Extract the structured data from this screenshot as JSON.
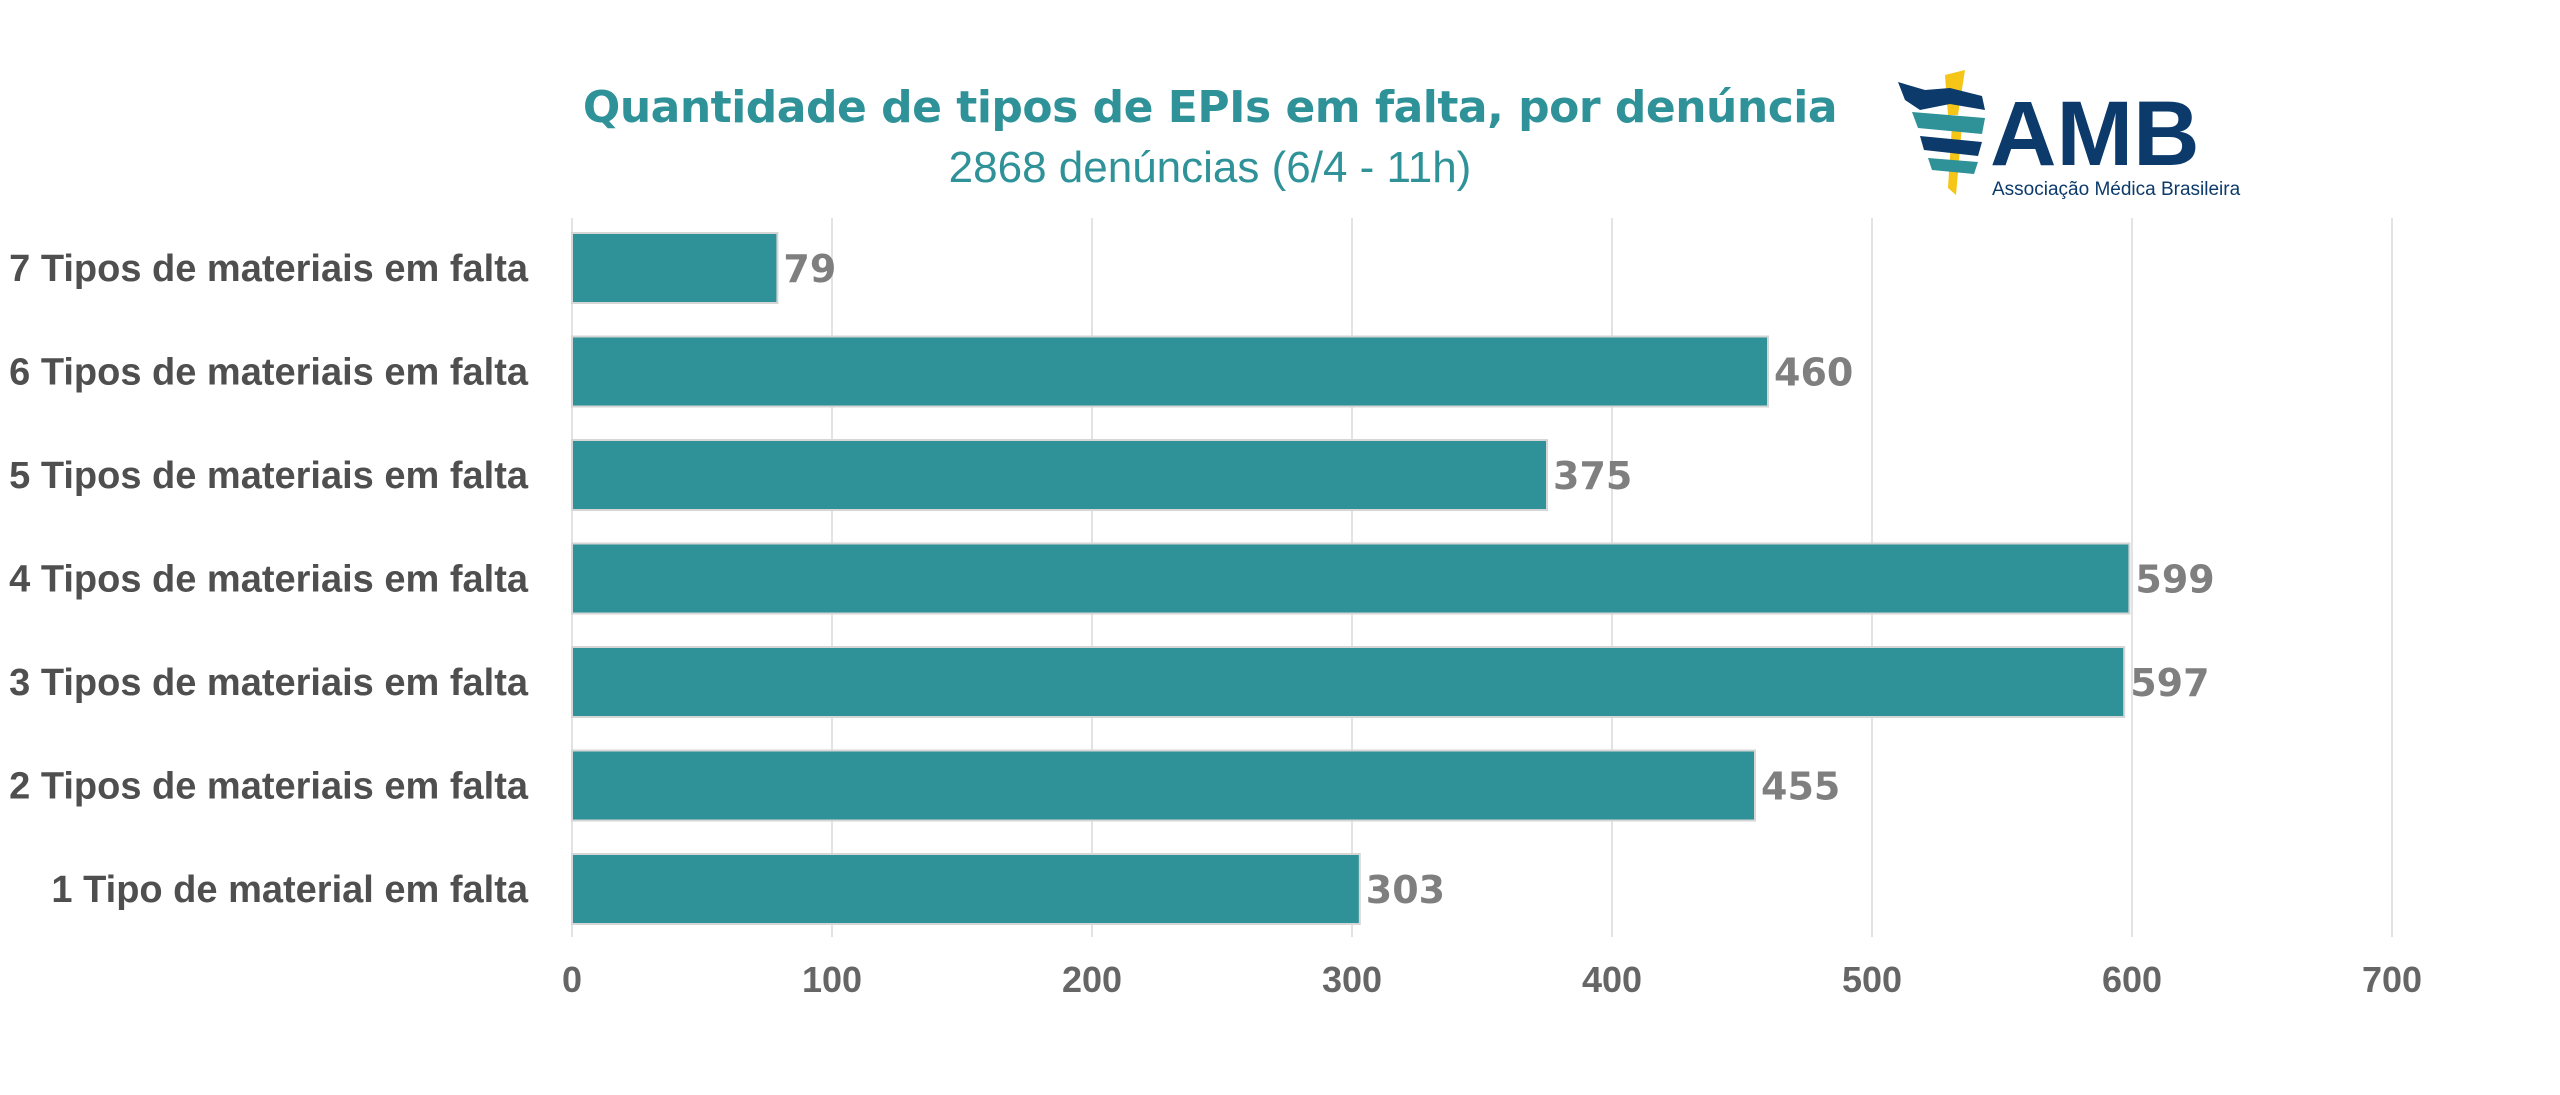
{
  "header": {
    "title": "Quantidade de tipos de EPIs em falta, por denúncia",
    "subtitle": "2868 denúncias (6/4 - 11h)"
  },
  "logo": {
    "text": "AMB",
    "tagline": "Associação Médica Brasileira",
    "colors": {
      "navy": "#0b3a6b",
      "teal": "#2e9298",
      "gold": "#f5c518"
    }
  },
  "colors": {
    "bar": "#2e9298",
    "title": "#2e9298",
    "grid": "#e3e3e3",
    "category_text": "#4f4f4f",
    "tick_text": "#666666",
    "data_label": "#7f7f7f"
  },
  "chart_data": {
    "type": "bar",
    "orientation": "horizontal",
    "title": "Quantidade de tipos de EPIs em falta, por denúncia",
    "subtitle": "2868 denúncias (6/4 - 11h)",
    "categories": [
      "7 Tipos de materiais em falta",
      "6 Tipos de materiais em falta",
      "5 Tipos de materiais em falta",
      "4 Tipos de materiais em falta",
      "3 Tipos de materiais em falta",
      "2 Tipos de materiais em falta",
      "1 Tipo de material em falta"
    ],
    "values": [
      79,
      460,
      375,
      599,
      597,
      455,
      303
    ],
    "xlabel": "",
    "ylabel": "",
    "xlim": [
      0,
      700
    ],
    "xticks": [
      0,
      100,
      200,
      300,
      400,
      500,
      600,
      700
    ],
    "grid": "vertical",
    "data_labels": true,
    "legend": "none"
  }
}
